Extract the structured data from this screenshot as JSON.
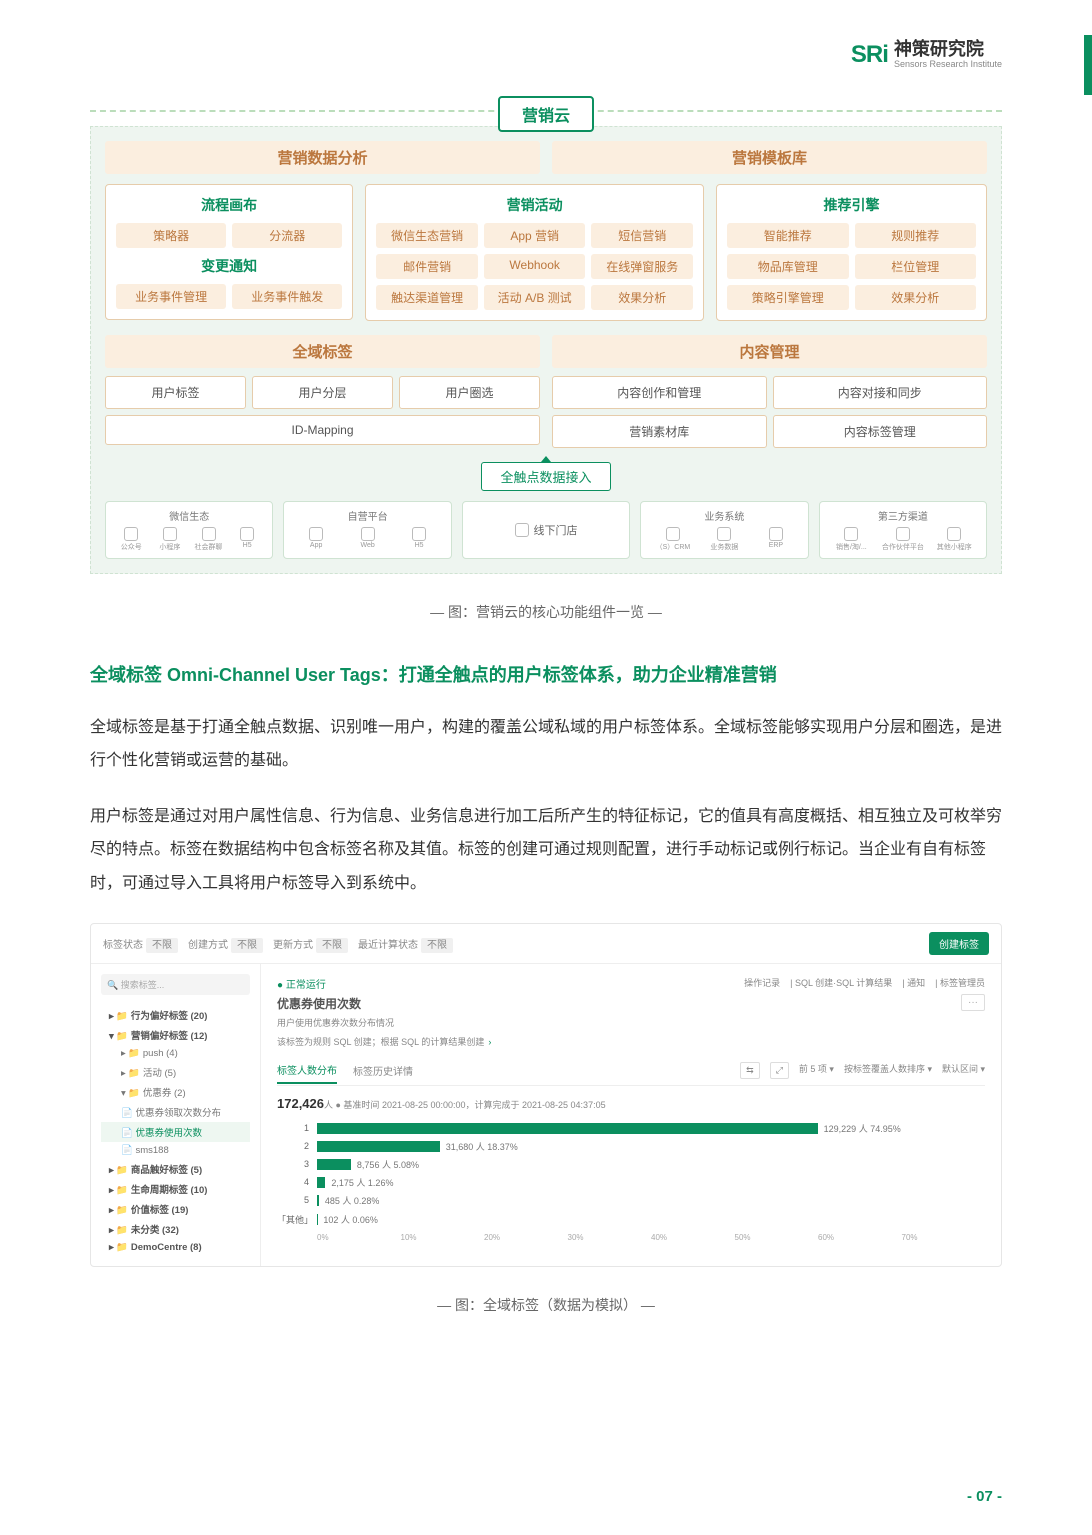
{
  "brand": {
    "logo": "SRi",
    "cn": "神策研究院",
    "en": "Sensors Research Institute"
  },
  "arch": {
    "title": "营销云",
    "heads": [
      "营销数据分析",
      "营销模板库"
    ],
    "col1": {
      "t1": "流程画布",
      "r1": [
        "策略器",
        "分流器"
      ],
      "t2": "变更通知",
      "r2": [
        "业务事件管理",
        "业务事件触发"
      ]
    },
    "col2": {
      "t": "营销活动",
      "cells": [
        "微信生态营销",
        "App 营销",
        "短信营销",
        "邮件营销",
        "Webhook",
        "在线弹窗服务",
        "触达渠道管理",
        "活动 A/B 测试",
        "效果分析"
      ]
    },
    "col3": {
      "t": "推荐引擎",
      "cells": [
        "智能推荐",
        "规则推荐",
        "物品库管理",
        "栏位管理",
        "策略引擎管理",
        "效果分析"
      ]
    },
    "heads2": [
      "全域标签",
      "内容管理"
    ],
    "seg1": {
      "cells": [
        "用户标签",
        "用户分层",
        "用户圈选"
      ],
      "wide": "ID-Mapping"
    },
    "seg2": {
      "cells": [
        "内容创作和管理",
        "内容对接和同步",
        "营销素材库",
        "内容标签管理"
      ]
    },
    "accessLabel": "全触点数据接入",
    "channels": [
      {
        "title": "微信生态",
        "items": [
          "公众号",
          "小程序",
          "社会群聊",
          "H5"
        ]
      },
      {
        "title": "自营平台",
        "items": [
          "App",
          "Web",
          "H5"
        ]
      },
      {
        "title": "",
        "badge": "线下门店"
      },
      {
        "title": "业务系统",
        "items": [
          "（S）CRM",
          "业务数据",
          "ERP"
        ]
      },
      {
        "title": "第三方渠道",
        "items": [
          "销售/淘/...",
          "合作伙伴平台",
          "其他小程序"
        ]
      }
    ]
  },
  "caption1": "— 图：营销云的核心功能组件一览 —",
  "h2": "全域标签 Omni-Channel User Tags：打通全触点的用户标签体系，助力企业精准营销",
  "p1": "全域标签是基于打通全触点数据、识别唯一用户，构建的覆盖公域私域的用户标签体系。全域标签能够实现用户分层和圈选，是进行个性化营销或运营的基础。",
  "p2": "用户标签是通过对用户属性信息、行为信息、业务信息进行加工后所产生的特征标记，它的值具有高度概括、相互独立及可枚举穷尽的特点。标签在数据结构中包含标签名称及其值。标签的创建可通过规则配置，进行手动标记或例行标记。当企业有自有标签时，可通过导入工具将用户标签导入到系统中。",
  "shot": {
    "filters": [
      {
        "l": "标签状态",
        "v": "不限"
      },
      {
        "l": "创建方式",
        "v": "不限"
      },
      {
        "l": "更新方式",
        "v": "不限"
      },
      {
        "l": "最近计算状态",
        "v": "不限"
      }
    ],
    "newBtn": "创建标签",
    "searchPh": "搜索标签...",
    "tree": [
      {
        "t": "行为偏好标签 (20)",
        "bold": true
      },
      {
        "t": "营销偏好标签 (12)",
        "bold": true,
        "open": true
      },
      {
        "t": "push (4)",
        "sub": true
      },
      {
        "t": "活动 (5)",
        "sub": true
      },
      {
        "t": "优惠券 (2)",
        "sub": true,
        "open": true
      },
      {
        "t": "优惠券领取次数分布",
        "sub": true,
        "leaf": true
      },
      {
        "t": "优惠券使用次数",
        "sub": true,
        "leaf": true,
        "sel": true
      },
      {
        "t": "sms188",
        "sub": true,
        "leaf": true
      },
      {
        "t": "商品触好标签 (5)",
        "bold": true
      },
      {
        "t": "生命周期标签 (10)",
        "bold": true
      },
      {
        "t": "价值标签 (19)",
        "bold": true
      },
      {
        "t": "未分类 (32)",
        "bold": true
      },
      {
        "t": "DemoCentre (8)",
        "bold": true
      }
    ],
    "topLinks": [
      "操作记录",
      "SQL 创建·SQL 计算结果",
      "通知",
      "标签管理员"
    ],
    "status": "● 正常运行",
    "mainTitle": "优惠券使用次数",
    "mainSub": "用户使用优惠券次数分布情况",
    "sqlNote": "该标签为规则 SQL 创建；根据 SQL 的计算结果创建",
    "tabs": [
      "标签人数分布",
      "标签历史详情"
    ],
    "tools": [
      "前 5 项 ▾",
      "按标签覆盖人数排序 ▾",
      "默认区间 ▾"
    ],
    "count": "172,426",
    "countLine": "人 ● 基准时间 2021-08-25 00:00:00，计算完成于 2021-08-25 04:37:05",
    "bars": [
      {
        "l": "1",
        "pct": 74.95,
        "v": "129,229 人 74.95%"
      },
      {
        "l": "2",
        "pct": 18.37,
        "v": "31,680 人 18.37%"
      },
      {
        "l": "3",
        "pct": 5.08,
        "v": "8,756 人 5.08%"
      },
      {
        "l": "4",
        "pct": 1.26,
        "v": "2,175 人 1.26%"
      },
      {
        "l": "5",
        "pct": 0.28,
        "v": "485 人 0.28%"
      },
      {
        "l": "「其他」",
        "pct": 0.06,
        "v": "102 人 0.06%"
      }
    ],
    "axis": [
      "0%",
      "10%",
      "20%",
      "30%",
      "40%",
      "50%",
      "60%",
      "70%"
    ]
  },
  "caption2": "— 图：全域标签（数据为模拟） —",
  "pageNum": "- 07 -"
}
